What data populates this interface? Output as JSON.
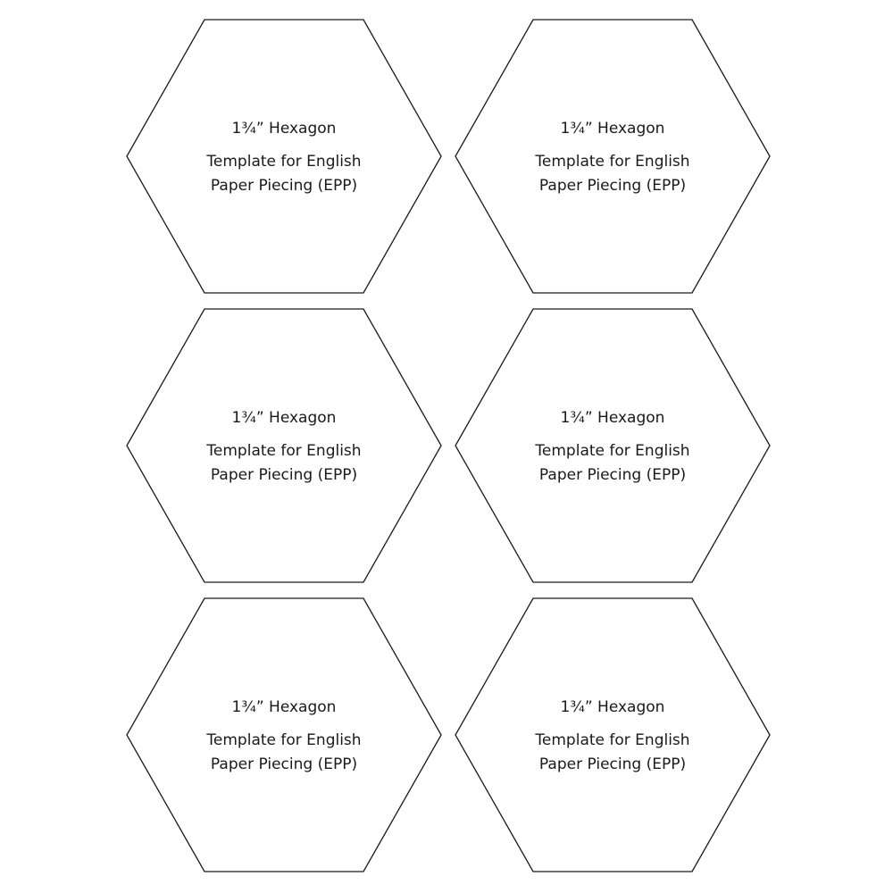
{
  "hexagons": [
    {
      "title": "1¾” Hexagon",
      "line1": "Template for English",
      "line2": "Paper Piecing (EPP)"
    },
    {
      "title": "1¾” Hexagon",
      "line1": "Template for English",
      "line2": "Paper Piecing (EPP)"
    },
    {
      "title": "1¾” Hexagon",
      "line1": "Template for English",
      "line2": "Paper Piecing (EPP)"
    },
    {
      "title": "1¾” Hexagon",
      "line1": "Template for English",
      "line2": "Paper Piecing (EPP)"
    },
    {
      "title": "1¾” Hexagon",
      "line1": "Template for English",
      "line2": "Paper Piecing (EPP)"
    },
    {
      "title": "1¾” Hexagon",
      "line1": "Template for English",
      "line2": "Paper Piecing (EPP)"
    }
  ],
  "colors": {
    "outline": "#1a1a1a",
    "background": "#ffffff"
  }
}
